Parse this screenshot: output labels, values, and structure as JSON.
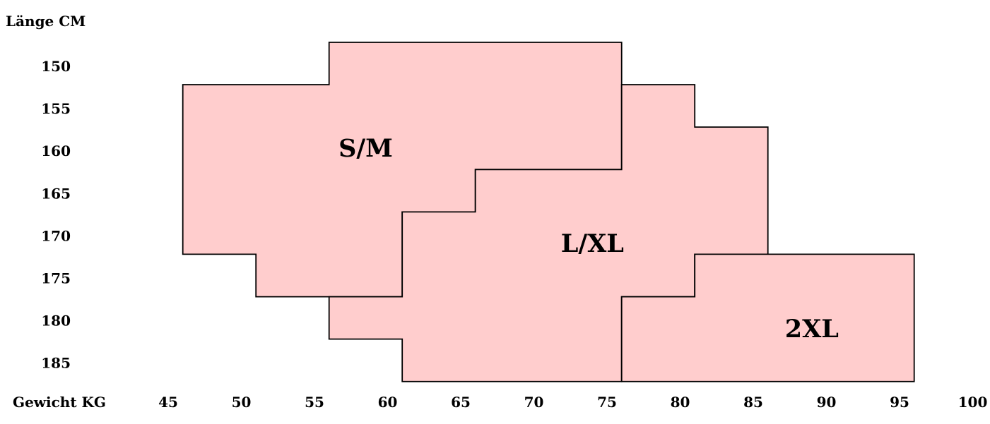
{
  "chart_data": {
    "type": "area",
    "subtype": "step-region-size-chart",
    "title": "",
    "xlabel": "Gewicht KG",
    "ylabel": "Länge CM",
    "x_unit": "kg",
    "y_unit": "cm",
    "x_ticks": [
      "45",
      "50",
      "55",
      "60",
      "65",
      "70",
      "75",
      "80",
      "85",
      "90",
      "95",
      "100"
    ],
    "y_ticks": [
      "150",
      "155",
      "160",
      "165",
      "170",
      "175",
      "180",
      "185"
    ],
    "xlim": [
      45,
      100
    ],
    "ylim": [
      150,
      185
    ],
    "grid": false,
    "legend": false,
    "axis_lines": false,
    "region_fill": "#ffcdcd",
    "region_stroke": "#000000",
    "text_color": "#000000",
    "background_color": "#ffffff",
    "regions": [
      {
        "id": "sm",
        "label": "S/M",
        "label_pos": [
          58.5,
          160
        ],
        "vertices_weight_height": [
          [
            46,
            152.5
          ],
          [
            56,
            152.5
          ],
          [
            56,
            147.5
          ],
          [
            76,
            147.5
          ],
          [
            76,
            162.5
          ],
          [
            66,
            162.5
          ],
          [
            66,
            167.5
          ],
          [
            61,
            167.5
          ],
          [
            61,
            177.5
          ],
          [
            51,
            177.5
          ],
          [
            51,
            172.5
          ],
          [
            46,
            172.5
          ]
        ]
      },
      {
        "id": "lxl",
        "label": "L/XL",
        "label_pos": [
          74,
          171.2
        ],
        "vertices_weight_height": [
          [
            76,
            152.5
          ],
          [
            81,
            152.5
          ],
          [
            81,
            157.5
          ],
          [
            86,
            157.5
          ],
          [
            86,
            172.5
          ],
          [
            81,
            172.5
          ],
          [
            81,
            177.5
          ],
          [
            76,
            177.5
          ],
          [
            76,
            187.5
          ],
          [
            61,
            187.5
          ],
          [
            61,
            182.5
          ],
          [
            56,
            182.5
          ],
          [
            56,
            177.5
          ],
          [
            61,
            177.5
          ],
          [
            61,
            167.5
          ],
          [
            66,
            167.5
          ],
          [
            66,
            162.5
          ],
          [
            76,
            162.5
          ]
        ]
      },
      {
        "id": "2xl",
        "label": "2XL",
        "label_pos": [
          89,
          181.3
        ],
        "vertices_weight_height": [
          [
            81,
            172.5
          ],
          [
            96,
            172.5
          ],
          [
            96,
            187.5
          ],
          [
            76,
            187.5
          ],
          [
            76,
            177.5
          ],
          [
            81,
            177.5
          ]
        ]
      }
    ]
  }
}
